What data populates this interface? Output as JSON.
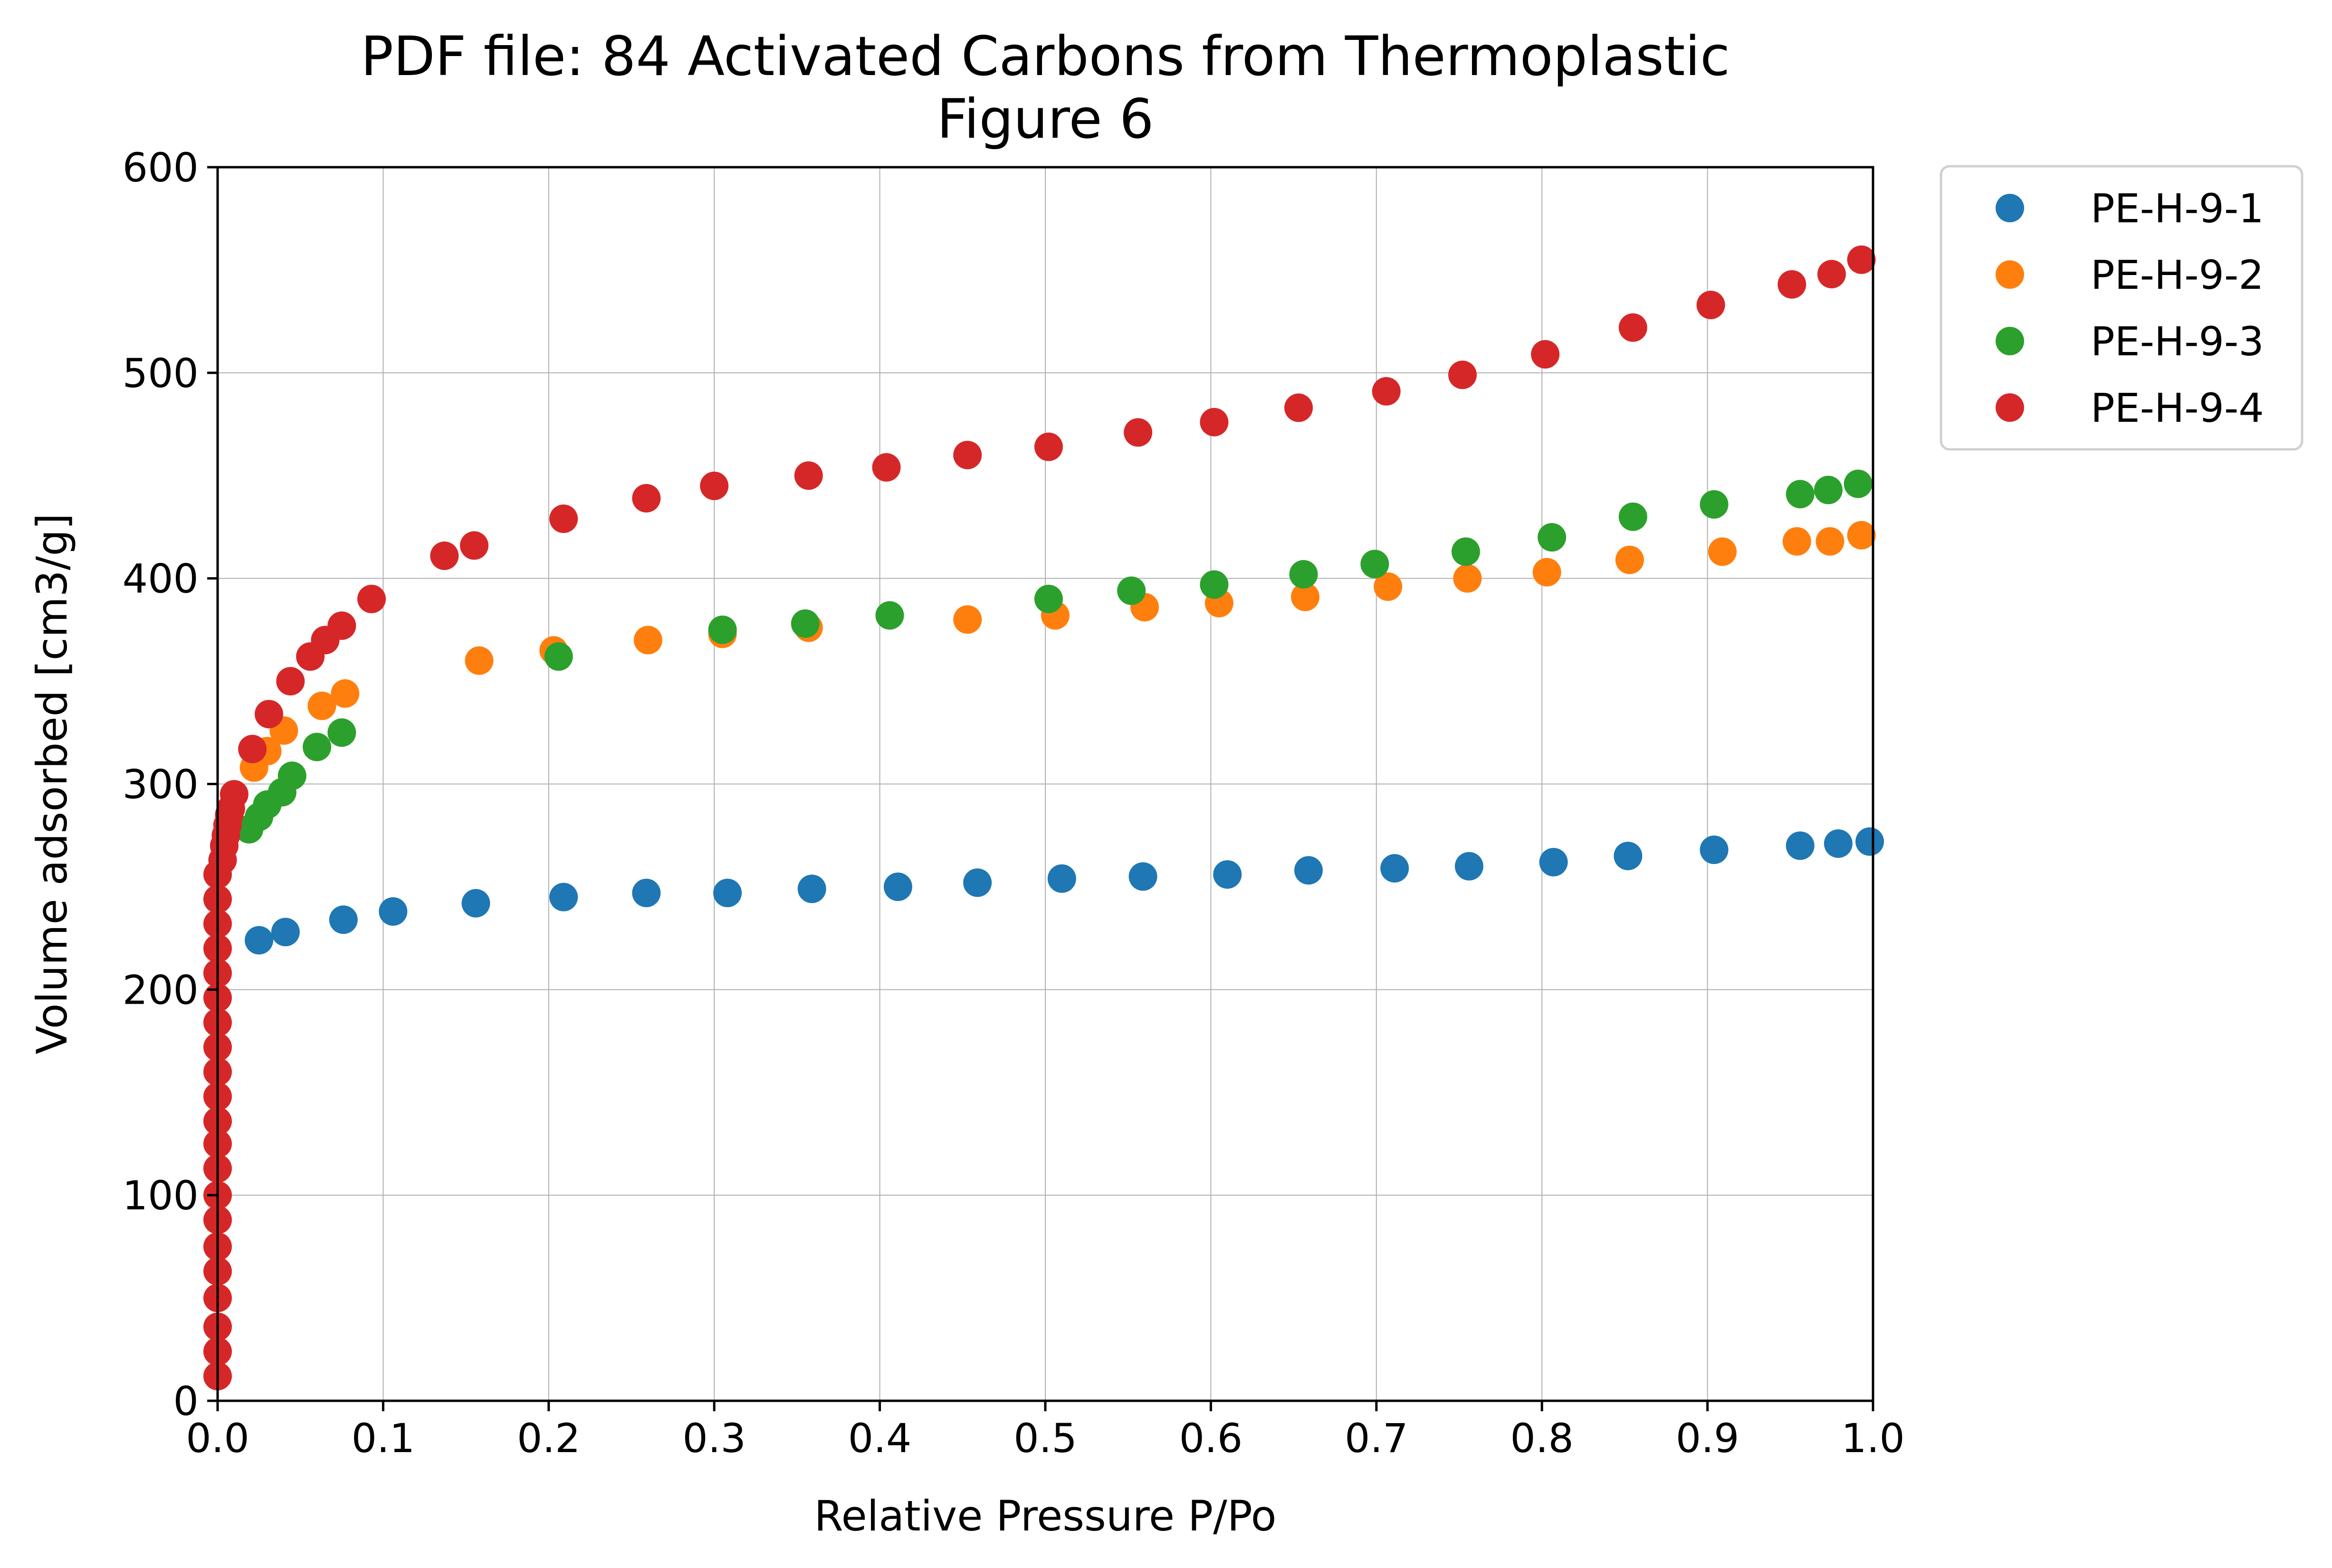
{
  "chart_data": {
    "type": "scatter",
    "title": "PDF file: 84 Activated Carbons from Thermoplastic",
    "subtitle": "Figure 6",
    "xlabel": "Relative Pressure P/Po",
    "ylabel": "Volume adsorbed [cm3/g]",
    "xlim": [
      0,
      1
    ],
    "ylim": [
      0,
      600
    ],
    "xticks": [
      0.0,
      0.1,
      0.2,
      0.3,
      0.4,
      0.5,
      0.6,
      0.7,
      0.8,
      0.9,
      1.0
    ],
    "xtick_labels": [
      "0.0",
      "0.1",
      "0.2",
      "0.3",
      "0.4",
      "0.5",
      "0.6",
      "0.7",
      "0.8",
      "0.9",
      "1.0"
    ],
    "yticks": [
      0,
      100,
      200,
      300,
      400,
      500,
      600
    ],
    "ytick_labels": [
      "0",
      "100",
      "200",
      "300",
      "400",
      "500",
      "600"
    ],
    "grid": true,
    "legend_position": "outside-top-right",
    "series": [
      {
        "name": "PE-H-9-1",
        "color": "#1f77b4",
        "x": [
          0.025,
          0.041,
          0.076,
          0.106,
          0.156,
          0.209,
          0.259,
          0.308,
          0.359,
          0.411,
          0.459,
          0.51,
          0.559,
          0.61,
          0.659,
          0.711,
          0.756,
          0.807,
          0.852,
          0.904,
          0.956,
          0.979,
          0.998
        ],
        "y": [
          224,
          228,
          234,
          238,
          242,
          245,
          247,
          247,
          249,
          250,
          252,
          254,
          255,
          256,
          258,
          259,
          260,
          262,
          265,
          268,
          270,
          271,
          272
        ]
      },
      {
        "name": "PE-H-9-2",
        "color": "#ff7f0e",
        "x": [
          0.022,
          0.03,
          0.04,
          0.063,
          0.077,
          0.158,
          0.203,
          0.26,
          0.305,
          0.357,
          0.453,
          0.506,
          0.56,
          0.605,
          0.657,
          0.707,
          0.755,
          0.803,
          0.853,
          0.909,
          0.954,
          0.974,
          0.993
        ],
        "y": [
          308,
          316,
          326,
          338,
          344,
          360,
          365,
          370,
          373,
          376,
          380,
          382,
          386,
          388,
          391,
          396,
          400,
          403,
          409,
          413,
          418,
          418,
          421
        ]
      },
      {
        "name": "PE-H-9-3",
        "color": "#2ca02c",
        "x": [
          0.019,
          0.025,
          0.03,
          0.039,
          0.045,
          0.06,
          0.075,
          0.206,
          0.305,
          0.355,
          0.406,
          0.502,
          0.552,
          0.602,
          0.656,
          0.699,
          0.754,
          0.806,
          0.855,
          0.904,
          0.956,
          0.973,
          0.991
        ],
        "y": [
          278,
          284,
          290,
          296,
          304,
          318,
          325,
          362,
          375,
          378,
          382,
          390,
          394,
          397,
          402,
          407,
          413,
          420,
          430,
          436,
          441,
          443,
          446
        ]
      },
      {
        "name": "PE-H-9-4",
        "color": "#d62728",
        "x": [
          0.0,
          0.0,
          0.0,
          0.0,
          0.0,
          0.0,
          0.0,
          0.0,
          0.0,
          0.0,
          0.0,
          0.0,
          0.0,
          0.0,
          0.0,
          0.0,
          0.0,
          0.0,
          0.0,
          0.0,
          0.0,
          0.003,
          0.004,
          0.005,
          0.006,
          0.007,
          0.008,
          0.01,
          0.021,
          0.031,
          0.044,
          0.056,
          0.065,
          0.075,
          0.093,
          0.137,
          0.155,
          0.209,
          0.259,
          0.3,
          0.357,
          0.404,
          0.453,
          0.502,
          0.556,
          0.602,
          0.653,
          0.706,
          0.752,
          0.802,
          0.855,
          0.902,
          0.951,
          0.975,
          0.993
        ],
        "y": [
          12,
          24,
          36,
          50,
          63,
          75,
          88,
          100,
          113,
          125,
          136,
          148,
          160,
          172,
          184,
          196,
          208,
          220,
          232,
          244,
          256,
          263,
          270,
          275,
          280,
          285,
          288,
          295,
          317,
          334,
          350,
          362,
          370,
          377,
          390,
          411,
          416,
          429,
          439,
          445,
          450,
          454,
          460,
          464,
          471,
          476,
          483,
          491,
          499,
          509,
          522,
          533,
          543,
          548,
          555
        ]
      }
    ]
  }
}
